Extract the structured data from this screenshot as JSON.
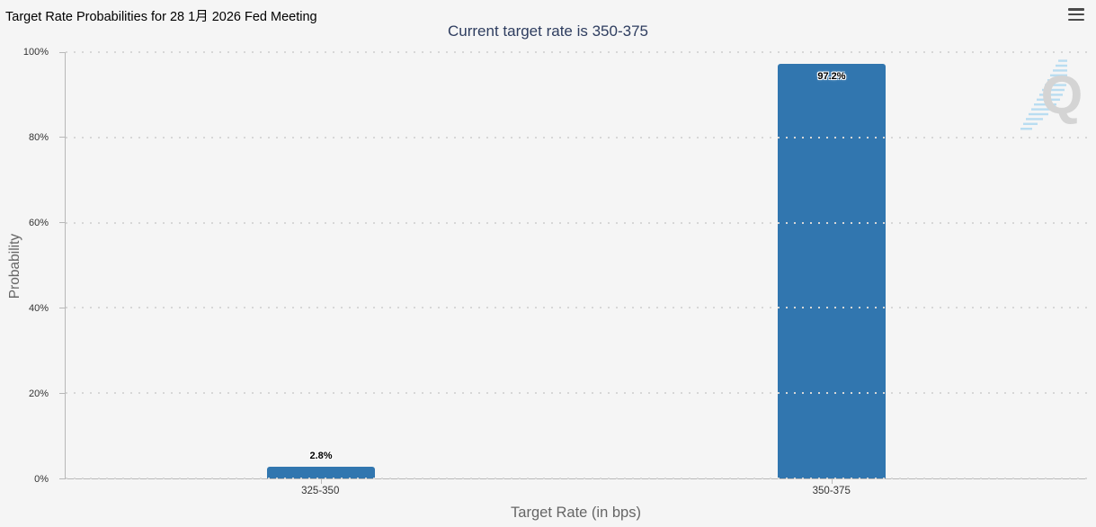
{
  "header": {
    "title": "Target Rate Probabilities for 28 1月 2026 Fed Meeting",
    "subtitle": "Current target rate is 350-375",
    "menu_tooltip": "Chart context menu"
  },
  "chart_data": {
    "type": "bar",
    "title": "Target Rate Probabilities for 28 1月 2026 Fed Meeting",
    "subtitle": "Current target rate is 350-375",
    "categories": [
      "325-350",
      "350-375"
    ],
    "values": [
      2.8,
      97.2
    ],
    "value_labels": [
      "2.8%",
      "97.2%"
    ],
    "xlabel": "Target Rate (in bps)",
    "ylabel": "Probability",
    "ylim": [
      0,
      100
    ],
    "yticks": [
      "0%",
      "20%",
      "40%",
      "60%",
      "80%",
      "100%"
    ],
    "grid": "horizontal-dotted",
    "legend_position": "none",
    "bar_color": "#3176af"
  },
  "colors": {
    "background": "#f5f5f5",
    "bar": "#3176af",
    "subtitle_text": "#2e3d5f",
    "axis_title_text": "#666666",
    "tick_text": "#333333",
    "gridline": "#d7d7d7",
    "axis_line": "#b8b8b8"
  },
  "watermark": {
    "name": "Q logo",
    "letter": "Q"
  }
}
